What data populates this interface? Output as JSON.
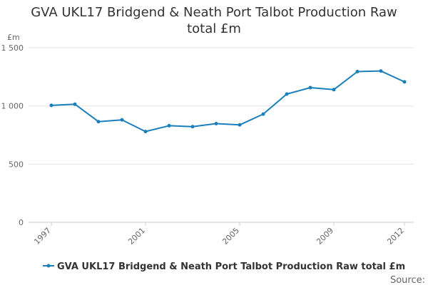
{
  "chart_data": {
    "type": "line",
    "title": "GVA UKL17 Bridgend & Neath Port Talbot Production Raw total £m",
    "ylabel": "£m",
    "xlabel": "",
    "ylim": [
      0,
      1500
    ],
    "y_ticks": [
      0,
      500,
      1000,
      1500
    ],
    "y_tick_labels": [
      "0",
      "500",
      "1 000",
      "1 500"
    ],
    "x_tick_labels": [
      "1997",
      "2001",
      "2005",
      "2009",
      "2012"
    ],
    "x": [
      1997,
      1998,
      1999,
      2000,
      2001,
      2002,
      2003,
      2004,
      2005,
      2006,
      2007,
      2008,
      2009,
      2010,
      2011,
      2012
    ],
    "series": [
      {
        "name": "GVA UKL17 Bridgend & Neath Port Talbot Production Raw total £m",
        "values": [
          1005,
          1015,
          865,
          880,
          780,
          830,
          822,
          848,
          837,
          930,
          1102,
          1157,
          1140,
          1295,
          1300,
          1207
        ],
        "color": "#1a80bb"
      }
    ],
    "grid": true,
    "legend_position": "bottom",
    "source_label": "Source:"
  }
}
